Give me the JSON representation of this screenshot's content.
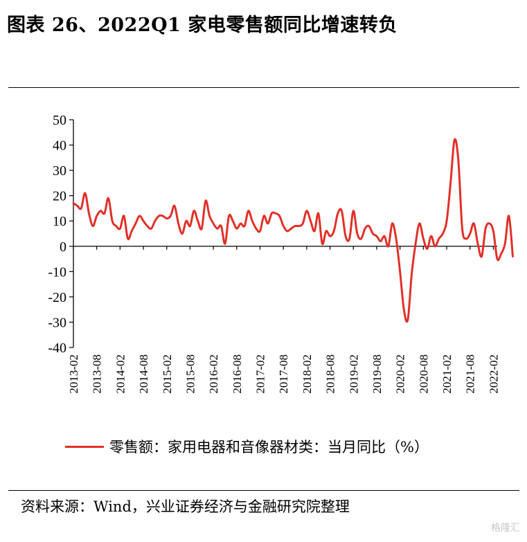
{
  "title": "图表 26、2022Q1 家电零售额同比增速转负",
  "source": "资料来源：Wind，兴业证券经济与金融研究院整理",
  "watermark": "格隆汇",
  "colors": {
    "series": "#e03028",
    "axis": "#000000"
  },
  "chart_data": {
    "type": "line",
    "ylim": [
      -40,
      50
    ],
    "yticks": [
      50,
      40,
      30,
      20,
      10,
      0,
      -10,
      -20,
      -30,
      -40
    ],
    "x_start": "2013-02",
    "x_end": "2022-03",
    "xtick_labels": [
      "2013-02",
      "2013-08",
      "2014-02",
      "2014-08",
      "2015-02",
      "2015-08",
      "2016-02",
      "2016-08",
      "2017-02",
      "2017-08",
      "2018-02",
      "2018-08",
      "2019-02",
      "2019-08",
      "2020-02",
      "2020-08",
      "2021-02",
      "2021-08",
      "2022-02"
    ],
    "legend_position": "bottom",
    "grid": false,
    "series": [
      {
        "name": "零售额：家用电器和音像器材类：当月同比（%）",
        "values": [
          17,
          16,
          15,
          21,
          13,
          8,
          12,
          14,
          13,
          19,
          10,
          8,
          7,
          12,
          3,
          6,
          9,
          12,
          10,
          8,
          7,
          10,
          12,
          12,
          11,
          12,
          16,
          9,
          5,
          10,
          8,
          14,
          10,
          7,
          18,
          12,
          9,
          7,
          8,
          1,
          12,
          10,
          7,
          9,
          8,
          14,
          10,
          7,
          6,
          12,
          9,
          13,
          13,
          12,
          8,
          6,
          7,
          8,
          8,
          9,
          14,
          10,
          6,
          13,
          1,
          6,
          4,
          6,
          13,
          14,
          4,
          3,
          14,
          5,
          3,
          7,
          8,
          5,
          4,
          2,
          4,
          0,
          9,
          3,
          -10,
          -25,
          -29,
          -11,
          1,
          9,
          3,
          -1,
          4,
          0,
          3,
          5,
          10,
          25,
          42,
          34,
          7,
          3,
          5,
          9,
          1,
          -4,
          7,
          9,
          6,
          -5,
          -3,
          1,
          12,
          -4
        ]
      }
    ]
  }
}
